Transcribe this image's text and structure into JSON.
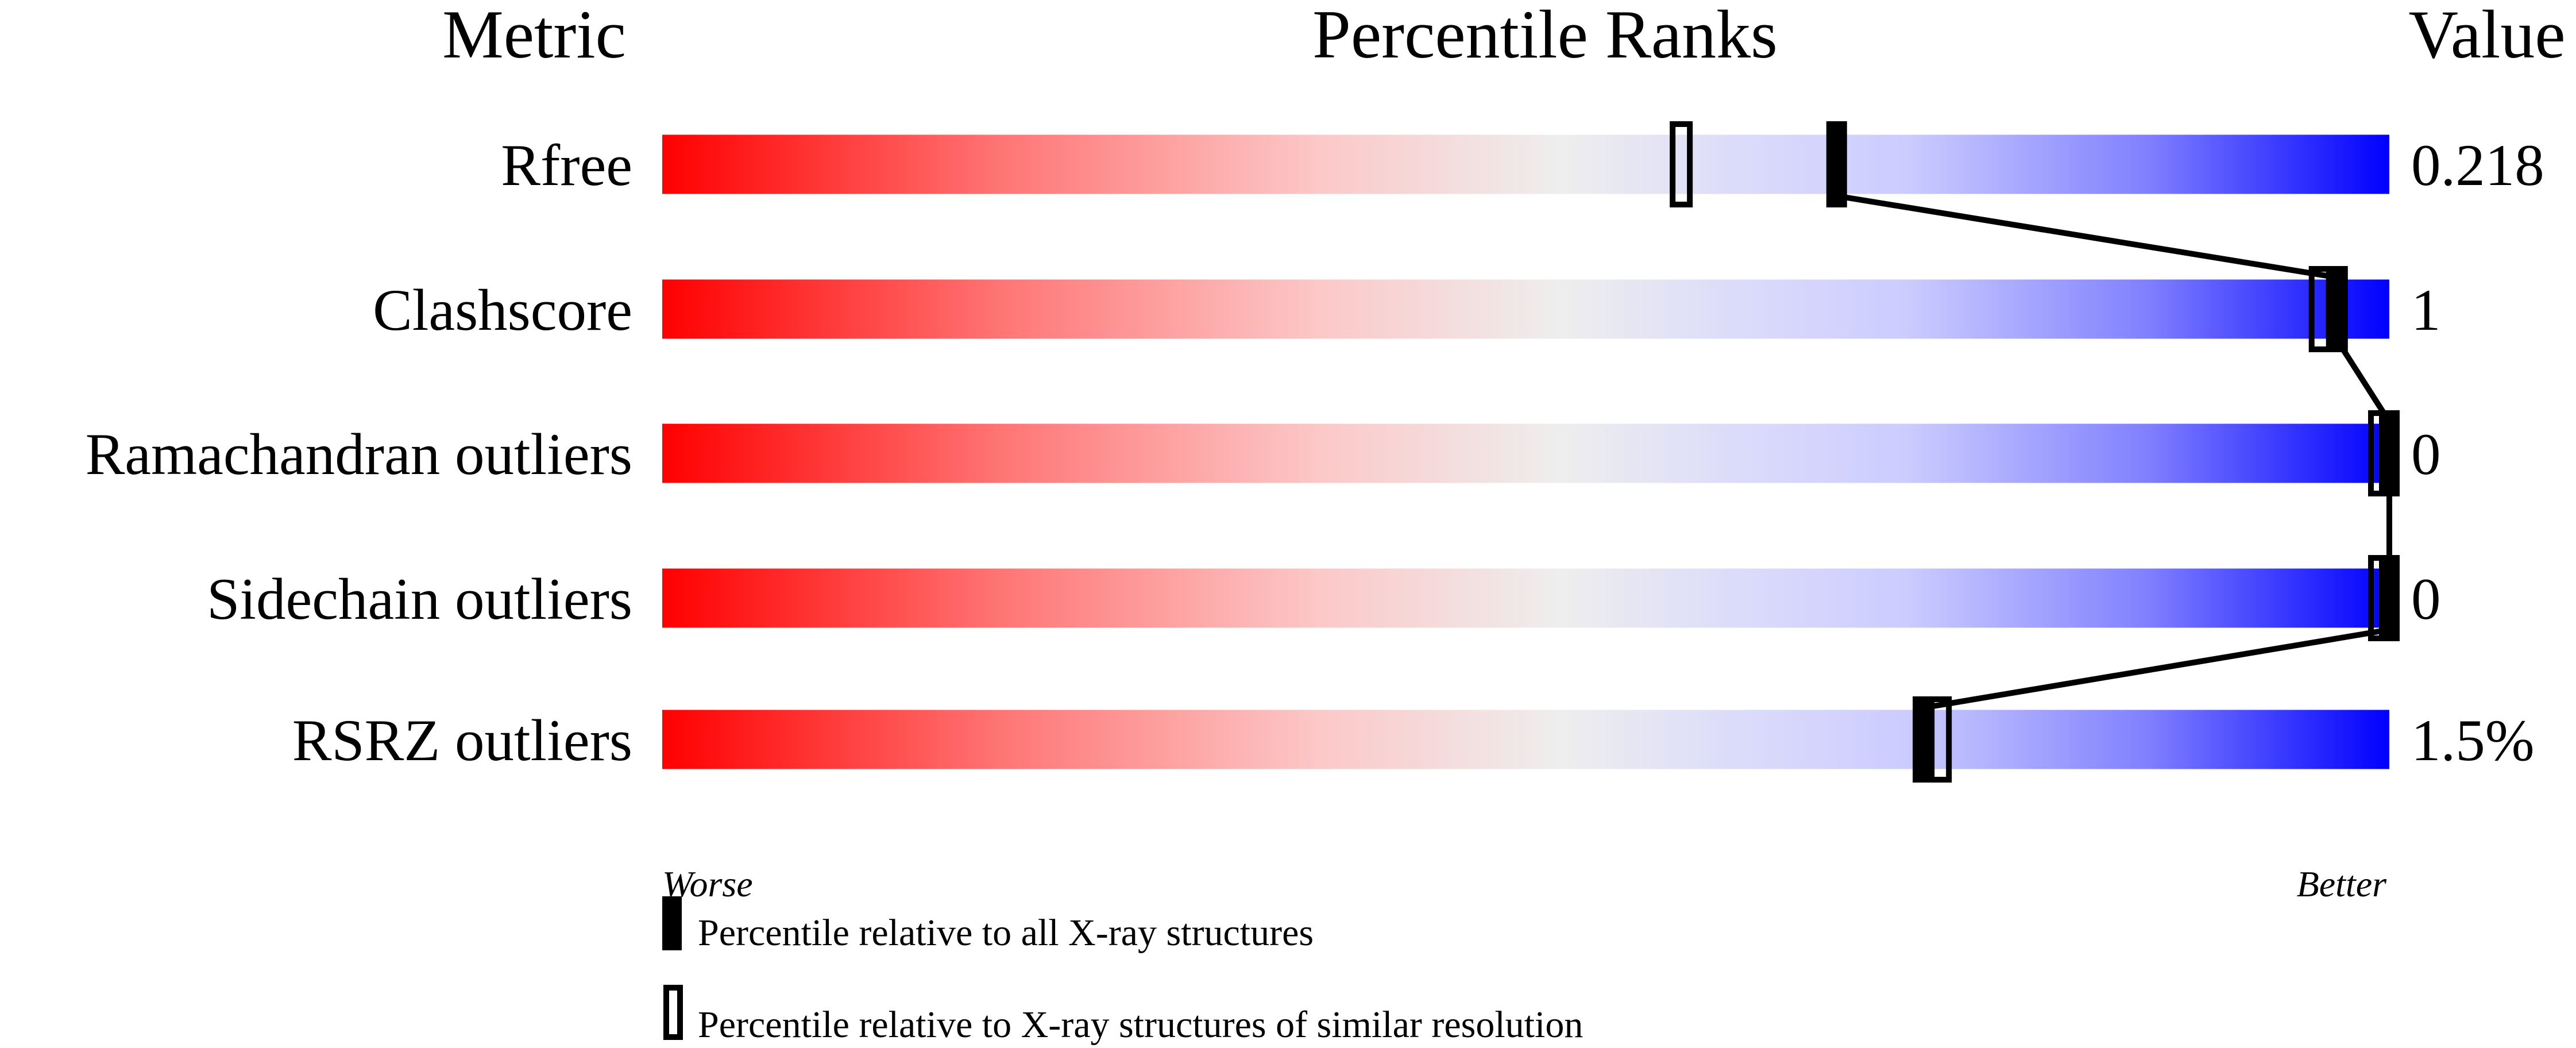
{
  "chart_data": {
    "type": "percentile-slider",
    "headers": {
      "metric": "Metric",
      "ranks": "Percentile Ranks",
      "value": "Value"
    },
    "xlim": [
      0,
      100
    ],
    "metrics": [
      {
        "name": "Rfree",
        "value": "0.218",
        "percentile_all": 68,
        "percentile_similar": 59
      },
      {
        "name": "Clashscore",
        "value": "1",
        "percentile_all": 97,
        "percentile_similar": 96
      },
      {
        "name": "Ramachandran outliers",
        "value": "0",
        "percentile_all": 100,
        "percentile_similar": 100
      },
      {
        "name": "Sidechain outliers",
        "value": "0",
        "percentile_all": 100,
        "percentile_similar": 100
      },
      {
        "name": "RSRZ outliers",
        "value": "1.5%",
        "percentile_all": 73,
        "percentile_similar": 74
      }
    ],
    "axis": {
      "left": "Worse",
      "right": "Better"
    },
    "legend": {
      "all": "Percentile relative to all X-ray structures",
      "similar": "Percentile relative to X-ray structures of similar resolution"
    },
    "colors": {
      "worse": "#ff0000",
      "middle": "#eeeeee",
      "better": "#0000ff",
      "marker": "#000000"
    }
  }
}
